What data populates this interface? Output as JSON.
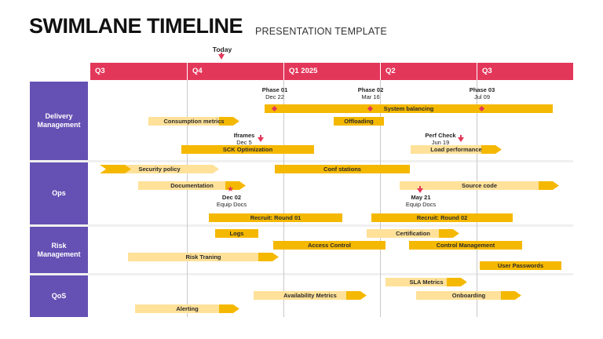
{
  "title": "SWIMLANE TIMELINE",
  "subtitle": "PRESENTATION TEMPLATE",
  "today_label": "Today",
  "quarters": [
    "Q3",
    "Q4",
    "Q1 2025",
    "Q2",
    "Q3"
  ],
  "lanes": [
    "Delivery Management",
    "Ops",
    "Risk Management",
    "QoS"
  ],
  "milestones": {
    "phase01": {
      "name": "Phase 01",
      "date": "Dec 22"
    },
    "phase02": {
      "name": "Phase 02",
      "date": "Mar 16"
    },
    "phase03": {
      "name": "Phase 03",
      "date": "Jul 09"
    },
    "iframes": {
      "name": "Iframes",
      "date": "Dec 5"
    },
    "perfcheck": {
      "name": "Perf Check",
      "date": "Jun 19"
    },
    "dec02": {
      "name": "Dec 02",
      "desc": "Equip Docs"
    },
    "may21": {
      "name": "May 21",
      "desc": "Equip Docs"
    }
  },
  "tasks": {
    "system_balancing": "System balancing",
    "consumption_metrics": "Consumption metrics",
    "offloading": "Offloading",
    "sck_optimization": "SCK Optimization",
    "load_performance": "Load performance",
    "security_policy": "Security policy",
    "conf_stations": "Conf stations",
    "documentation": "Documentation",
    "source_code": "Source code",
    "recruit_01": "Recruit: Round 01",
    "recruit_02": "Recruit: Round 02",
    "logs": "Logs",
    "certification": "Certification",
    "access_control": "Access Control",
    "control_management": "Control Management",
    "risk_training": "Risk Traning",
    "user_passwords": "User Passwords",
    "sla_metrics": "SLA Metrics",
    "availability_metrics": "Availability Metrics",
    "onboarding": "Onboarding",
    "alerting": "Alerting"
  },
  "colors": {
    "header": "#e3375a",
    "lane": "#6551b3",
    "bar": "#f5b800",
    "bar_light": "#ffe199",
    "marker": "#e3375a"
  }
}
